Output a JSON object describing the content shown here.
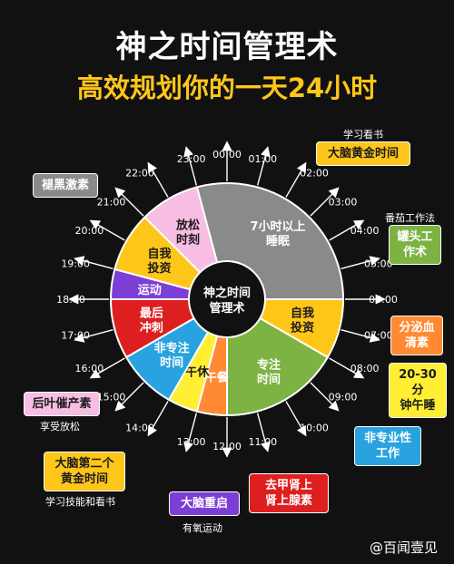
{
  "header": {
    "title": "神之时间管理术",
    "subtitle": "高效规划你的一天24小时"
  },
  "clock": {
    "center": "神之时间\n管理术",
    "hours": [
      "00:00",
      "01:00",
      "02:00",
      "03:00",
      "04:00",
      "05:00",
      "06:00",
      "07:00",
      "08:00",
      "09:00",
      "10:00",
      "11:00",
      "12:00",
      "13:00",
      "14:00",
      "15:00",
      "16:00",
      "17:00",
      "18:00",
      "19:00",
      "20:00",
      "21:00",
      "22:00",
      "23:00"
    ],
    "segments": [
      {
        "label": "7小时以上\n睡眠",
        "start": 23,
        "end": 6,
        "color": "#8a8a8a",
        "text": "#ffffff"
      },
      {
        "label": "自我\n投资",
        "start": 6,
        "end": 8,
        "color": "#ffc61a",
        "text": "#1a1a1a"
      },
      {
        "label": "专注\n时间",
        "start": 8,
        "end": 12,
        "color": "#7cb342",
        "text": "#ffffff"
      },
      {
        "label": "午餐",
        "start": 12,
        "end": 13,
        "color": "#ff8a33",
        "text": "#ffffff"
      },
      {
        "label": "午休",
        "start": 13,
        "end": 14,
        "color": "#ffee33",
        "text": "#1a1a1a"
      },
      {
        "label": "非专注\n时间",
        "start": 14,
        "end": 16,
        "color": "#29a3e0",
        "text": "#ffffff"
      },
      {
        "label": "最后\n冲刺",
        "start": 16,
        "end": 18,
        "color": "#dd1f1f",
        "text": "#ffffff"
      },
      {
        "label": "运动",
        "start": 18,
        "end": 19,
        "color": "#7b3fd6",
        "text": "#ffffff"
      },
      {
        "label": "自我\n投资",
        "start": 19,
        "end": 21,
        "color": "#ffc61a",
        "text": "#1a1a1a"
      },
      {
        "label": "放松\n时刻",
        "start": 21,
        "end": 23,
        "color": "#f7bde3",
        "text": "#1a1a1a"
      }
    ]
  },
  "callouts": [
    {
      "id": "melatonin",
      "label": "褪黑激素",
      "bg": "#8a8a8a",
      "fg": "#ffffff",
      "caption": ""
    },
    {
      "id": "brain-golden",
      "label": "大脑黄金时间",
      "bg": "#ffc61a",
      "fg": "#1a1a1a",
      "caption": "学习看书"
    },
    {
      "id": "pomodoro",
      "label": "罐头工\n作术",
      "bg": "#7cb342",
      "fg": "#ffffff",
      "caption": "番茄工作法"
    },
    {
      "id": "secretion",
      "label": "分泌血\n清素",
      "bg": "#ff8a33",
      "fg": "#ffffff",
      "caption": ""
    },
    {
      "id": "nap",
      "label": "20-30分\n钟午睡",
      "bg": "#ffee33",
      "fg": "#1a1a1a",
      "caption": ""
    },
    {
      "id": "non-professional",
      "label": "非专业性\n工作",
      "bg": "#29a3e0",
      "fg": "#ffffff",
      "caption": ""
    },
    {
      "id": "adrenaline",
      "label": "去甲肾上\n肾上腺素",
      "bg": "#dd1f1f",
      "fg": "#ffffff",
      "caption": ""
    },
    {
      "id": "brain-restart",
      "label": "大脑重启",
      "bg": "#7b3fd6",
      "fg": "#ffffff",
      "caption": "有氧运动"
    },
    {
      "id": "second-golden",
      "label": "大脑第二个\n黄金时间",
      "bg": "#ffc61a",
      "fg": "#1a1a1a",
      "caption": "学习技能和看书"
    },
    {
      "id": "leaf-hormone",
      "label": "后叶催产素",
      "bg": "#f7bde3",
      "fg": "#1a1a1a",
      "caption": "享受放松"
    }
  ],
  "watermark": "@百闻壹见"
}
